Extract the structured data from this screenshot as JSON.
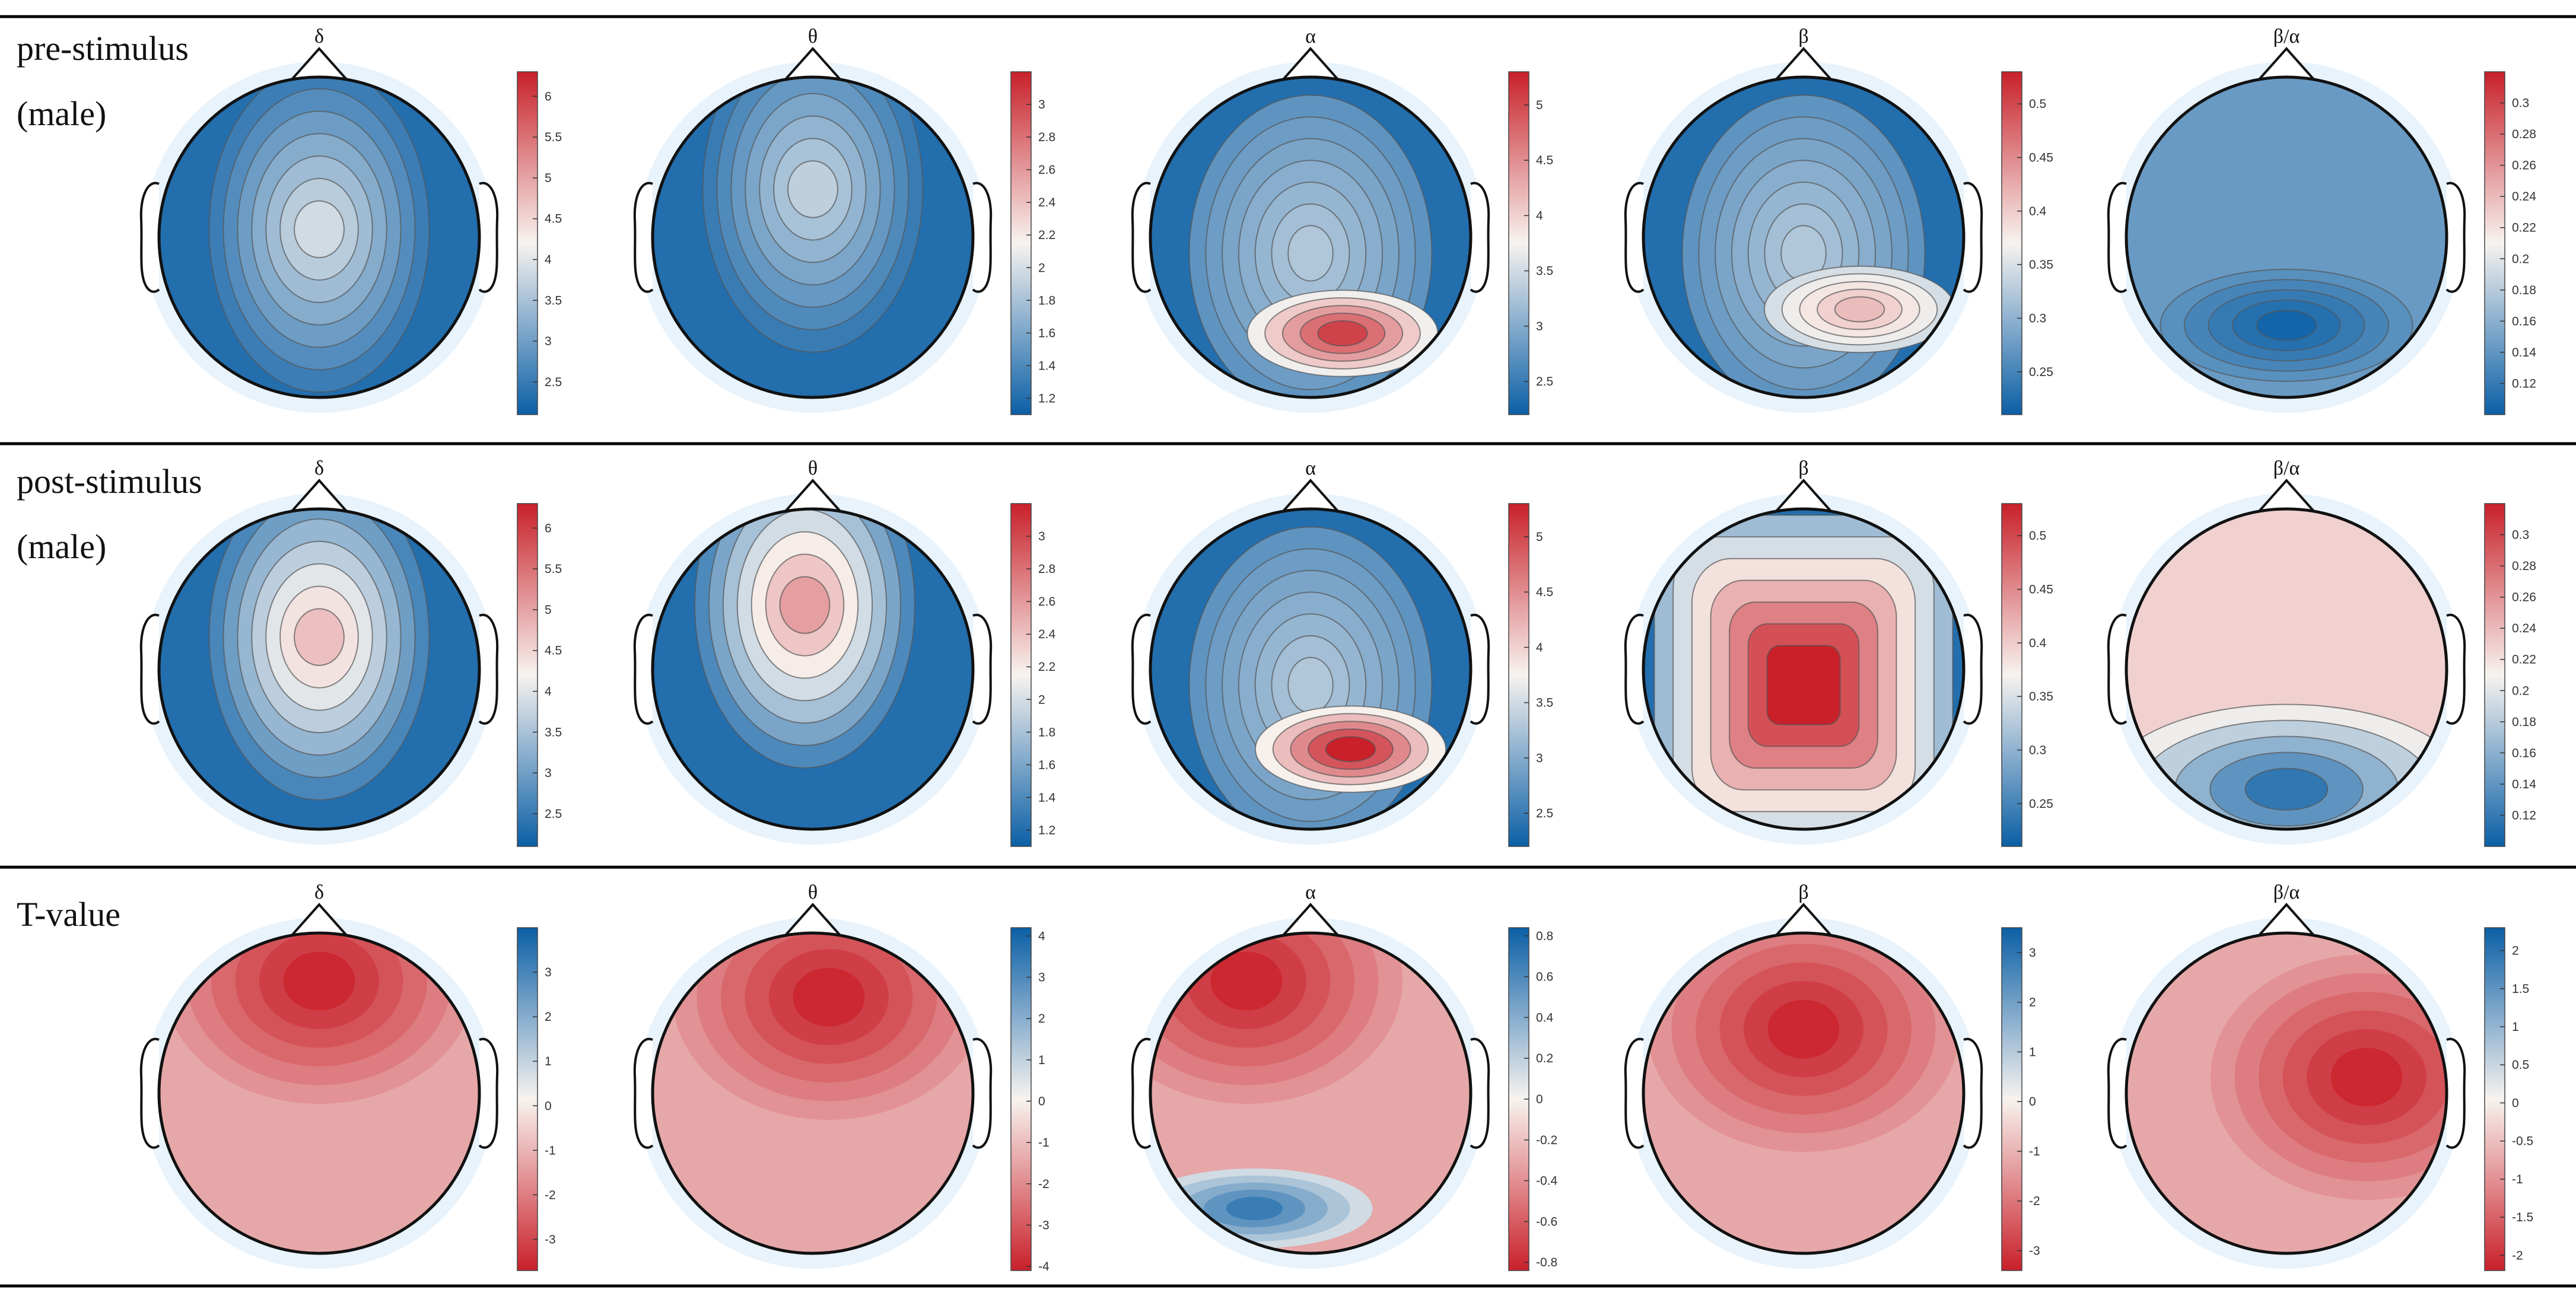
{
  "figure": {
    "row_labels": [
      {
        "line1": "pre-stimulus",
        "line2": "(male)"
      },
      {
        "line1": "post-stimulus",
        "line2": "(male)"
      },
      {
        "line1": "T-value",
        "line2": ""
      }
    ],
    "column_labels": [
      "δ",
      "θ",
      "α",
      "β",
      "β/α"
    ]
  },
  "colors": {
    "scale_low": "#0b5fa6",
    "scale_mid": "#f7f3ef",
    "scale_high": "#c9202a",
    "halo": "#e8f3fc",
    "outline": "#111111",
    "contour": "#555555",
    "divider": "#000000"
  },
  "chart_data": [
    {
      "type": "heatmap",
      "panel_id": "pre-delta",
      "row": "pre-stimulus (male)",
      "title": "δ",
      "colorbar": {
        "range": [
          2.1,
          6.3
        ],
        "ticks": [
          "2.5",
          "3",
          "3.5",
          "4",
          "4.5",
          "5",
          "5.5",
          "6"
        ],
        "low_color": "blue",
        "high_color": "red"
      },
      "contours": true,
      "pattern": "central",
      "level": 0.42,
      "hot_center": [
        0.0,
        -0.05
      ]
    },
    {
      "type": "heatmap",
      "panel_id": "pre-theta",
      "row": "pre-stimulus (male)",
      "title": "θ",
      "colorbar": {
        "range": [
          1.1,
          3.2
        ],
        "ticks": [
          "1.2",
          "1.4",
          "1.6",
          "1.8",
          "2",
          "2.2",
          "2.4",
          "2.6",
          "2.8",
          "3"
        ],
        "low_color": "blue",
        "high_color": "red"
      },
      "contours": true,
      "pattern": "central",
      "level": 0.38,
      "hot_center": [
        0.0,
        -0.3
      ]
    },
    {
      "type": "heatmap",
      "panel_id": "pre-alpha",
      "row": "pre-stimulus (male)",
      "title": "α",
      "colorbar": {
        "range": [
          2.2,
          5.3
        ],
        "ticks": [
          "2.5",
          "3",
          "3.5",
          "4",
          "4.5",
          "5"
        ],
        "low_color": "blue",
        "high_color": "red"
      },
      "contours": true,
      "pattern": "posterior-hot",
      "level": 0.5,
      "hot_center": [
        0.2,
        0.6
      ]
    },
    {
      "type": "heatmap",
      "panel_id": "pre-beta",
      "row": "pre-stimulus (male)",
      "title": "β",
      "colorbar": {
        "range": [
          0.21,
          0.53
        ],
        "ticks": [
          "0.25",
          "0.3",
          "0.35",
          "0.4",
          "0.45",
          "0.5"
        ],
        "low_color": "blue",
        "high_color": "red"
      },
      "contours": true,
      "pattern": "posterior-warm",
      "level": 0.45,
      "hot_center": [
        0.35,
        0.45
      ]
    },
    {
      "type": "heatmap",
      "panel_id": "pre-betaalpha",
      "row": "pre-stimulus (male)",
      "title": "β/α",
      "colorbar": {
        "range": [
          0.1,
          0.32
        ],
        "ticks": [
          "0.12",
          "0.14",
          "0.16",
          "0.18",
          "0.2",
          "0.22",
          "0.24",
          "0.26",
          "0.28",
          "0.3"
        ],
        "low_color": "blue",
        "high_color": "red"
      },
      "contours": true,
      "pattern": "diffuse-cool",
      "level": 0.3,
      "hot_center": [
        0.0,
        0.55
      ]
    },
    {
      "type": "heatmap",
      "panel_id": "post-delta",
      "row": "post-stimulus (male)",
      "title": "δ",
      "colorbar": {
        "range": [
          2.1,
          6.3
        ],
        "ticks": [
          "2.5",
          "3",
          "3.5",
          "4",
          "4.5",
          "5",
          "5.5",
          "6"
        ],
        "low_color": "blue",
        "high_color": "red"
      },
      "contours": true,
      "pattern": "central",
      "level": 0.62,
      "hot_center": [
        0.0,
        -0.2
      ]
    },
    {
      "type": "heatmap",
      "panel_id": "post-theta",
      "row": "post-stimulus (male)",
      "title": "θ",
      "colorbar": {
        "range": [
          1.1,
          3.2
        ],
        "ticks": [
          "1.2",
          "1.4",
          "1.6",
          "1.8",
          "2",
          "2.2",
          "2.4",
          "2.6",
          "2.8",
          "3"
        ],
        "low_color": "blue",
        "high_color": "red"
      },
      "contours": true,
      "pattern": "central",
      "level": 0.7,
      "hot_center": [
        -0.05,
        -0.4
      ]
    },
    {
      "type": "heatmap",
      "panel_id": "post-alpha",
      "row": "post-stimulus (male)",
      "title": "α",
      "colorbar": {
        "range": [
          2.2,
          5.3
        ],
        "ticks": [
          "2.5",
          "3",
          "3.5",
          "4",
          "4.5",
          "5"
        ],
        "low_color": "blue",
        "high_color": "red"
      },
      "contours": true,
      "pattern": "posterior-hot",
      "level": 0.58,
      "hot_center": [
        0.25,
        0.5
      ]
    },
    {
      "type": "heatmap",
      "panel_id": "post-beta",
      "row": "post-stimulus (male)",
      "title": "β",
      "colorbar": {
        "range": [
          0.21,
          0.53
        ],
        "ticks": [
          "0.25",
          "0.3",
          "0.35",
          "0.4",
          "0.45",
          "0.5"
        ],
        "low_color": "blue",
        "high_color": "red"
      },
      "contours": true,
      "pattern": "broad-hot",
      "level": 0.9,
      "hot_center": [
        0.0,
        0.1
      ]
    },
    {
      "type": "heatmap",
      "panel_id": "post-betaalpha",
      "row": "post-stimulus (male)",
      "title": "β/α",
      "colorbar": {
        "range": [
          0.1,
          0.32
        ],
        "ticks": [
          "0.12",
          "0.14",
          "0.16",
          "0.18",
          "0.2",
          "0.22",
          "0.24",
          "0.26",
          "0.28",
          "0.3"
        ],
        "low_color": "blue",
        "high_color": "red"
      },
      "contours": true,
      "pattern": "anterior-warm",
      "level": 0.55,
      "hot_center": [
        0.0,
        -0.4
      ]
    },
    {
      "type": "heatmap",
      "panel_id": "t-delta",
      "row": "T-value",
      "title": "δ",
      "colorbar": {
        "range": [
          -3.7,
          4.0
        ],
        "ticks": [
          "3",
          "2",
          "1",
          "0",
          "-1",
          "-2",
          "-3"
        ],
        "low_color": "red",
        "high_color": "blue"
      },
      "contours": false,
      "pattern": "t-map",
      "level": 0.78,
      "hot_center": [
        0.0,
        -0.7
      ]
    },
    {
      "type": "heatmap",
      "panel_id": "t-theta",
      "row": "T-value",
      "title": "θ",
      "colorbar": {
        "range": [
          -4.1,
          4.2
        ],
        "ticks": [
          "4",
          "3",
          "2",
          "1",
          "0",
          "-1",
          "-2",
          "-3",
          "-4"
        ],
        "low_color": "red",
        "high_color": "blue"
      },
      "contours": false,
      "pattern": "t-map",
      "level": 0.7,
      "hot_center": [
        0.1,
        -0.6
      ]
    },
    {
      "type": "heatmap",
      "panel_id": "t-alpha",
      "row": "T-value",
      "title": "α",
      "colorbar": {
        "range": [
          -0.84,
          0.84
        ],
        "ticks": [
          "0.8",
          "0.6",
          "0.4",
          "0.2",
          "0",
          "-0.2",
          "-0.4",
          "-0.6",
          "-0.8"
        ],
        "low_color": "red",
        "high_color": "blue"
      },
      "contours": false,
      "pattern": "t-map-mixed",
      "level": 0.6,
      "hot_center": [
        -0.4,
        -0.7
      ]
    },
    {
      "type": "heatmap",
      "panel_id": "t-beta",
      "row": "T-value",
      "title": "β",
      "colorbar": {
        "range": [
          -3.4,
          3.5
        ],
        "ticks": [
          "3",
          "2",
          "1",
          "0",
          "-1",
          "-2",
          "-3"
        ],
        "low_color": "red",
        "high_color": "blue"
      },
      "contours": false,
      "pattern": "t-map",
      "level": 0.88,
      "hot_center": [
        0.0,
        -0.4
      ]
    },
    {
      "type": "heatmap",
      "panel_id": "t-betaalpha",
      "row": "T-value",
      "title": "β/α",
      "colorbar": {
        "range": [
          -2.2,
          2.3
        ],
        "ticks": [
          "2",
          "1.5",
          "1",
          "0.5",
          "0",
          "-0.5",
          "-1",
          "-1.5",
          "-2"
        ],
        "low_color": "red",
        "high_color": "blue"
      },
      "contours": false,
      "pattern": "t-map",
      "level": 0.72,
      "hot_center": [
        0.5,
        -0.1
      ]
    }
  ]
}
